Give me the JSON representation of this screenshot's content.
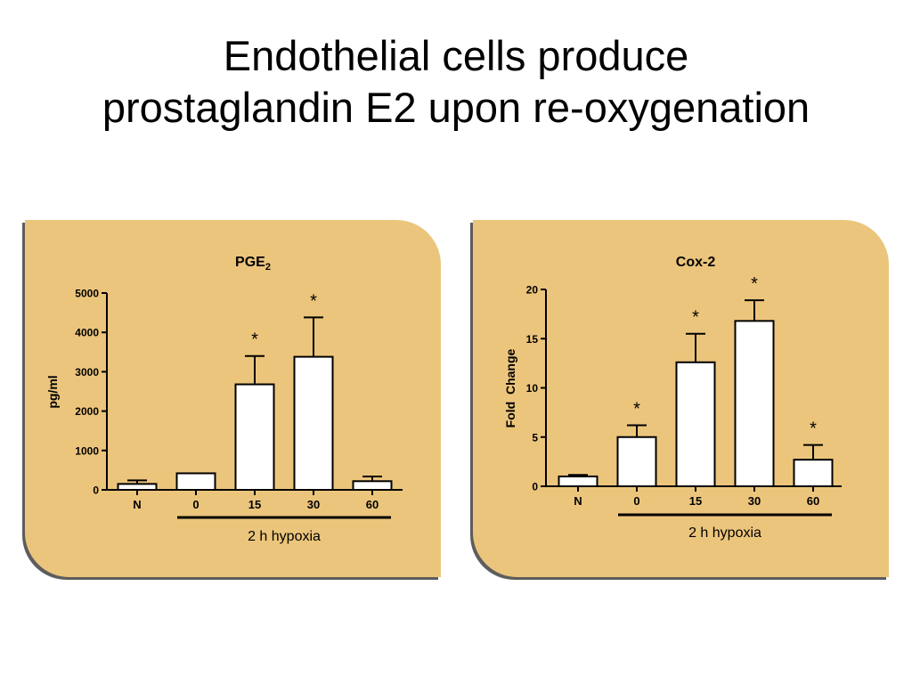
{
  "slide": {
    "title_line1": "Endothelial cells produce",
    "title_line2": "prostaglandin E2 upon re-oxygenation"
  },
  "colors": {
    "panel_background": "#ecc57c",
    "panel_shadow": "#5d5d5d",
    "bar_fill": "#ffffff",
    "ink": "#000000"
  },
  "chart_data": [
    {
      "type": "bar",
      "title": "PGE",
      "title_subscript": "2",
      "ylabel": "pg/ml",
      "xlabel": "",
      "ylim": [
        0,
        5000
      ],
      "yticks": [
        0,
        1000,
        2000,
        3000,
        4000,
        5000
      ],
      "categories": [
        "N",
        "0",
        "15",
        "30",
        "60"
      ],
      "values": [
        150,
        420,
        2680,
        3380,
        220
      ],
      "errors": [
        90,
        0,
        720,
        1000,
        120
      ],
      "significance": [
        "",
        "",
        "*",
        "*",
        ""
      ],
      "group_label": "2 h hypoxia",
      "group_categories": [
        "0",
        "15",
        "30",
        "60"
      ],
      "grid": false,
      "legend": "none"
    },
    {
      "type": "bar",
      "title": "Cox-2",
      "ylabel": "Fold  Change",
      "xlabel": "",
      "ylim": [
        0,
        20
      ],
      "yticks": [
        0,
        5,
        10,
        15,
        20
      ],
      "categories": [
        "N",
        "0",
        "15",
        "30",
        "60"
      ],
      "values": [
        1.0,
        5.0,
        12.6,
        16.8,
        2.7
      ],
      "errors": [
        0.15,
        1.2,
        2.9,
        2.1,
        1.5
      ],
      "significance": [
        "",
        "*",
        "*",
        "*",
        "*"
      ],
      "group_label": "2 h hypoxia",
      "group_categories": [
        "0",
        "15",
        "30",
        "60"
      ],
      "grid": false,
      "legend": "none"
    }
  ]
}
